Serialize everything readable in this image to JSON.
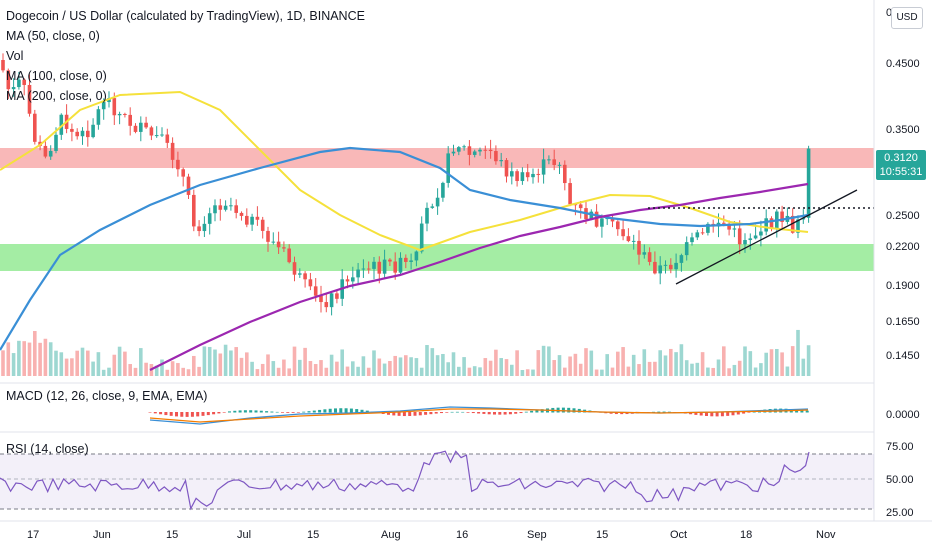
{
  "header": {
    "title": "Dogecoin / US Dollar (calculated by TradingView), 1D, BINANCE",
    "indicators": [
      "MA (50, close, 0)",
      "Vol",
      "MA (100, close, 0)",
      "MA (200, close, 0)"
    ]
  },
  "price_axis": {
    "currency_button": "USD",
    "top_cut": "0",
    "labels": [
      "0.4500",
      "0.3500",
      "0.2500",
      "0.2200",
      "0.1900",
      "0.1650",
      "0.1450"
    ],
    "current_price": "0.3120",
    "countdown": "10:55:31"
  },
  "macd": {
    "label": "MACD (12, 26, close, 9, EMA, EMA)",
    "axis_label": "0.0000"
  },
  "rsi": {
    "label": "RSI (14, close)",
    "axis_labels": [
      "75.00",
      "50.00",
      "25.00"
    ]
  },
  "time_axis": {
    "labels": [
      "17",
      "Jun",
      "15",
      "Jul",
      "15",
      "Aug",
      "16",
      "Sep",
      "15",
      "Oct",
      "18",
      "Nov"
    ]
  },
  "colors": {
    "up": "#26a69a",
    "down": "#ef5350",
    "ma50": "#f5e13b",
    "ma100": "#3a8fd6",
    "ma200": "#9c27b0",
    "resistance_zone": "#f7a0a0",
    "support_zone": "#7ee67e",
    "rsi_line": "#7e57c2"
  }
}
